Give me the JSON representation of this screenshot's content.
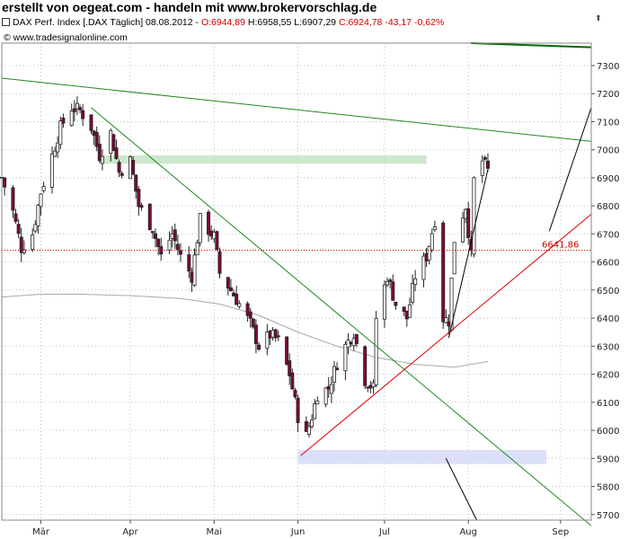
{
  "header": {
    "banner": "erstellt von oegeat.com - handeln mit www.brokervorschlag.de",
    "instrument": "DAX Perf. Index [.DAX  Täglich] 08.08.2012 -",
    "open": "O:6944,89",
    "high": "H:6958,55",
    "low": "L:6907,29",
    "close": "C:6924,78",
    "change": "-43,17",
    "change_pct": "-0,62%",
    "source": "www.tradesignalonline.com"
  },
  "chart_data": {
    "type": "candlestick",
    "ylim": [
      5680,
      7380
    ],
    "y_ticks": [
      5700,
      5800,
      5900,
      6000,
      6100,
      6200,
      6300,
      6400,
      6500,
      6600,
      6700,
      6800,
      6900,
      7000,
      7100,
      7200,
      7300
    ],
    "x_tick_labels": [
      "Mär",
      "Apr",
      "Mai",
      "Jun",
      "Jul",
      "Aug",
      "Sep"
    ],
    "x_tick_dates": [
      "2012-03-01",
      "2012-04-02",
      "2012-05-02",
      "2012-06-01",
      "2012-07-02",
      "2012-08-01",
      "2012-09-03"
    ],
    "x_range": [
      "2012-02-16",
      "2012-09-14"
    ],
    "horizontal_level": {
      "value": 6641.86,
      "label": "6641,86",
      "color": "#cc0000"
    },
    "close_path": [
      [
        "2012-02-16",
        6900
      ],
      [
        "2012-02-20",
        6780
      ],
      [
        "2012-02-23",
        6650
      ],
      [
        "2012-02-27",
        6700
      ],
      [
        "2012-03-01",
        6850
      ],
      [
        "2012-03-05",
        6980
      ],
      [
        "2012-03-08",
        7080
      ],
      [
        "2012-03-12",
        7150
      ],
      [
        "2012-03-15",
        7140
      ],
      [
        "2012-03-19",
        7080
      ],
      [
        "2012-03-22",
        6980
      ],
      [
        "2012-03-26",
        7060
      ],
      [
        "2012-03-29",
        6920
      ],
      [
        "2012-04-02",
        6960
      ],
      [
        "2012-04-05",
        6800
      ],
      [
        "2012-04-10",
        6720
      ],
      [
        "2012-04-13",
        6620
      ],
      [
        "2012-04-17",
        6700
      ],
      [
        "2012-04-20",
        6620
      ],
      [
        "2012-04-24",
        6550
      ],
      [
        "2012-04-27",
        6750
      ],
      [
        "2012-05-02",
        6690
      ],
      [
        "2012-05-04",
        6560
      ],
      [
        "2012-05-08",
        6500
      ],
      [
        "2012-05-11",
        6450
      ],
      [
        "2012-05-15",
        6380
      ],
      [
        "2012-05-18",
        6300
      ],
      [
        "2012-05-22",
        6340
      ],
      [
        "2012-05-25",
        6320
      ],
      [
        "2012-05-29",
        6200
      ],
      [
        "2012-06-01",
        6050
      ],
      [
        "2012-06-04",
        5980
      ],
      [
        "2012-06-06",
        6050
      ],
      [
        "2012-06-08",
        6130
      ],
      [
        "2012-06-12",
        6150
      ],
      [
        "2012-06-15",
        6240
      ],
      [
        "2012-06-18",
        6300
      ],
      [
        "2012-06-21",
        6350
      ],
      [
        "2012-06-25",
        6180
      ],
      [
        "2012-06-28",
        6150
      ],
      [
        "2012-06-29",
        6400
      ],
      [
        "2012-07-03",
        6550
      ],
      [
        "2012-07-06",
        6450
      ],
      [
        "2012-07-10",
        6400
      ],
      [
        "2012-07-13",
        6550
      ],
      [
        "2012-07-17",
        6620
      ],
      [
        "2012-07-20",
        6750
      ],
      [
        "2012-07-23",
        6400
      ],
      [
        "2012-07-25",
        6390
      ],
      [
        "2012-07-27",
        6680
      ],
      [
        "2012-07-31",
        6800
      ],
      [
        "2012-08-02",
        6620
      ],
      [
        "2012-08-03",
        6890
      ],
      [
        "2012-08-06",
        6960
      ],
      [
        "2012-08-08",
        6925
      ]
    ],
    "sma": [
      [
        "2012-02-16",
        6475
      ],
      [
        "2012-03-01",
        6485
      ],
      [
        "2012-03-15",
        6485
      ],
      [
        "2012-04-02",
        6480
      ],
      [
        "2012-04-20",
        6470
      ],
      [
        "2012-05-04",
        6450
      ],
      [
        "2012-05-18",
        6410
      ],
      [
        "2012-06-01",
        6350
      ],
      [
        "2012-06-15",
        6300
      ],
      [
        "2012-06-29",
        6260
      ],
      [
        "2012-07-13",
        6235
      ],
      [
        "2012-07-27",
        6225
      ],
      [
        "2012-08-08",
        6245
      ]
    ],
    "zones": [
      {
        "from": "2012-03-23",
        "to": "2012-07-17",
        "ylow": 6950,
        "yhigh": 6980,
        "color": "#c8e6c8"
      },
      {
        "from": "2012-06-01",
        "to": "2012-08-29",
        "ylow": 5880,
        "yhigh": 5930,
        "color": "#d8dcf8"
      }
    ],
    "trendlines": [
      {
        "color": "#228822",
        "width": 1,
        "from": [
          "2012-02-16",
          7255
        ],
        "to": [
          "2012-09-14",
          7030
        ]
      },
      {
        "color": "#228822",
        "width": 1,
        "from": [
          "2012-03-19",
          7150
        ],
        "to": [
          "2012-09-14",
          5660
        ]
      },
      {
        "color": "#006600",
        "width": 2,
        "from": [
          "2012-08-02",
          7380
        ],
        "to": [
          "2012-09-14",
          7365
        ]
      },
      {
        "color": "#dd0000",
        "width": 1,
        "from": [
          "2012-06-02",
          5910
        ],
        "to": [
          "2012-09-14",
          6770
        ]
      },
      {
        "color": "#000000",
        "width": 1,
        "from": [
          "2012-07-25",
          6330
        ],
        "to": [
          "2012-08-08",
          6930
        ]
      },
      {
        "color": "#000000",
        "width": 1,
        "from": [
          "2012-08-30",
          6710
        ],
        "to": [
          "2012-09-14",
          7150
        ]
      },
      {
        "color": "#000000",
        "width": 1,
        "from": [
          "2012-07-24",
          5900
        ],
        "to": [
          "2012-08-04",
          5680
        ]
      }
    ]
  }
}
